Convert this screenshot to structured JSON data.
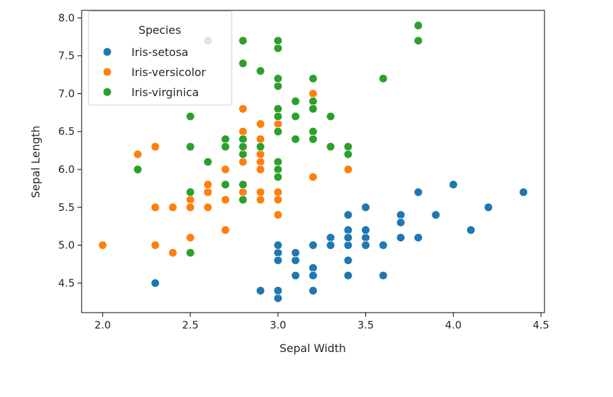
{
  "chart_data": {
    "type": "scatter",
    "xlabel": "Sepal Width",
    "ylabel": "Sepal Length",
    "xlim": [
      1.88,
      4.52
    ],
    "ylim": [
      4.11,
      8.1
    ],
    "xticks": [
      "2.0",
      "2.5",
      "3.0",
      "3.5",
      "4.0",
      "4.5"
    ],
    "yticks": [
      "4.5",
      "5.0",
      "5.5",
      "6.0",
      "6.5",
      "7.0",
      "7.5",
      "8.0"
    ],
    "grid": false,
    "legend": {
      "title": "Species",
      "placement": "upper-left"
    },
    "series": [
      {
        "name": "Iris-setosa",
        "color": "#1f77b4",
        "x": [
          3.5,
          3.0,
          3.2,
          3.1,
          3.6,
          3.9,
          3.4,
          3.4,
          2.9,
          3.1,
          3.7,
          3.4,
          3.0,
          3.0,
          4.0,
          4.4,
          3.9,
          3.5,
          3.8,
          3.8,
          3.4,
          3.7,
          3.6,
          3.3,
          3.4,
          3.0,
          3.4,
          3.5,
          3.4,
          3.2,
          3.1,
          3.4,
          4.1,
          4.2,
          3.1,
          3.2,
          3.5,
          3.1,
          3.0,
          3.4,
          3.5,
          2.3,
          3.2,
          3.5,
          3.8,
          3.0,
          3.8,
          3.2,
          3.7,
          3.3
        ],
        "y": [
          5.1,
          4.9,
          4.7,
          4.6,
          5.0,
          5.4,
          4.6,
          5.0,
          4.4,
          4.9,
          5.4,
          4.8,
          4.8,
          4.3,
          5.8,
          5.7,
          5.4,
          5.1,
          5.7,
          5.1,
          5.4,
          5.1,
          4.6,
          5.1,
          4.8,
          5.0,
          5.0,
          5.2,
          5.2,
          4.7,
          4.8,
          5.4,
          5.2,
          5.5,
          4.9,
          5.0,
          5.5,
          4.9,
          4.4,
          5.1,
          5.0,
          4.5,
          4.4,
          5.0,
          5.1,
          4.8,
          5.1,
          4.6,
          5.3,
          5.0
        ]
      },
      {
        "name": "Iris-versicolor",
        "color": "#ff7f0e",
        "x": [
          3.2,
          3.2,
          3.1,
          2.3,
          2.8,
          2.8,
          3.3,
          2.4,
          2.9,
          2.7,
          2.0,
          3.0,
          2.2,
          2.9,
          2.9,
          3.1,
          3.0,
          2.7,
          2.2,
          2.5,
          3.2,
          2.8,
          2.5,
          2.8,
          2.9,
          3.0,
          2.8,
          3.0,
          2.9,
          2.6,
          2.4,
          2.4,
          2.7,
          2.7,
          3.0,
          3.4,
          3.1,
          2.3,
          3.0,
          2.5,
          2.6,
          3.0,
          2.6,
          2.3,
          2.7,
          3.0,
          2.9,
          2.9,
          2.5,
          2.8
        ],
        "y": [
          7.0,
          6.4,
          6.9,
          5.5,
          6.5,
          5.7,
          6.3,
          4.9,
          6.6,
          5.2,
          5.0,
          5.9,
          6.0,
          6.1,
          5.6,
          6.7,
          5.6,
          5.8,
          6.2,
          5.6,
          5.9,
          6.1,
          6.3,
          6.1,
          6.4,
          6.6,
          6.8,
          6.7,
          6.0,
          5.7,
          5.5,
          5.5,
          5.8,
          6.0,
          5.4,
          6.0,
          6.7,
          6.3,
          5.6,
          5.5,
          5.5,
          6.1,
          5.8,
          5.0,
          5.6,
          5.7,
          5.7,
          6.2,
          5.1,
          5.7
        ]
      },
      {
        "name": "Iris-virginica",
        "color": "#2ca02c",
        "x": [
          3.3,
          2.7,
          3.0,
          2.9,
          3.0,
          3.0,
          2.5,
          2.9,
          2.5,
          3.6,
          3.2,
          2.7,
          3.0,
          2.5,
          2.8,
          3.2,
          3.0,
          3.8,
          2.6,
          2.2,
          3.2,
          2.8,
          2.8,
          2.7,
          3.3,
          3.2,
          2.8,
          3.0,
          2.8,
          3.0,
          2.8,
          3.8,
          2.8,
          2.8,
          2.6,
          3.0,
          3.4,
          3.1,
          3.0,
          3.1,
          3.1,
          3.1,
          2.7,
          3.2,
          3.3,
          3.0,
          2.5,
          3.0,
          3.4,
          3.0
        ],
        "y": [
          6.3,
          5.8,
          7.1,
          6.3,
          6.5,
          7.6,
          4.9,
          7.3,
          6.7,
          7.2,
          6.5,
          6.4,
          6.8,
          5.7,
          5.8,
          6.4,
          6.5,
          7.7,
          7.7,
          6.0,
          6.9,
          5.6,
          7.7,
          6.3,
          6.7,
          7.2,
          6.2,
          6.1,
          6.4,
          7.2,
          7.4,
          7.9,
          6.4,
          6.3,
          6.1,
          7.7,
          6.3,
          6.4,
          6.0,
          6.9,
          6.7,
          6.9,
          5.8,
          6.8,
          6.7,
          6.7,
          6.3,
          6.5,
          6.2,
          5.9
        ]
      }
    ]
  }
}
